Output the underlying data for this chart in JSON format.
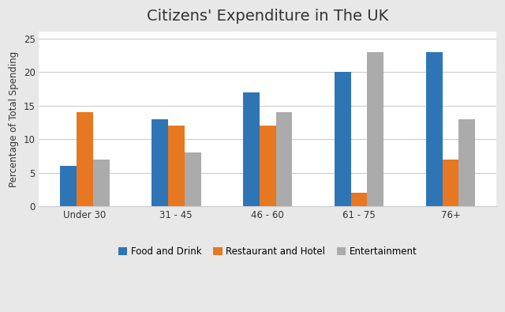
{
  "title": "Citizens' Expenditure in The UK",
  "ylabel": "Percentage of Total Spending",
  "categories": [
    "Under 30",
    "31 - 45",
    "46 - 60",
    "61 - 75",
    "76+"
  ],
  "series": [
    {
      "label": "Food and Drink",
      "color": "#2E75B6",
      "values": [
        6,
        13,
        17,
        20,
        23
      ]
    },
    {
      "label": "Restaurant and Hotel",
      "color": "#E87722",
      "values": [
        14,
        12,
        12,
        2,
        7
      ]
    },
    {
      "label": "Entertainment",
      "color": "#ABABAB",
      "values": [
        7,
        8,
        14,
        23,
        13
      ]
    }
  ],
  "ylim": [
    0,
    26
  ],
  "yticks": [
    0,
    5,
    10,
    15,
    20,
    25
  ],
  "bar_width": 0.18,
  "outer_bg_color": "#E8E8E8",
  "inner_bg_color": "#FFFFFF",
  "grid_color": "#CCCCCC",
  "title_fontsize": 14,
  "legend_fontsize": 8.5,
  "ylabel_fontsize": 8.5,
  "tick_fontsize": 8.5
}
